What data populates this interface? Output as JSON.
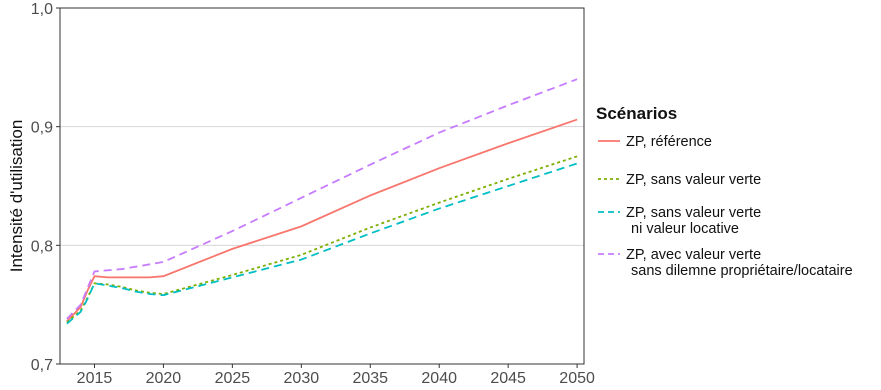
{
  "chart_data": {
    "type": "line",
    "title": "",
    "xlabel": "",
    "ylabel": "Intensité d'utilisation",
    "xlim": [
      2012.5,
      2050.5
    ],
    "ylim": [
      0.7,
      1.0
    ],
    "x_ticks": [
      2015,
      2020,
      2025,
      2030,
      2035,
      2040,
      2045,
      2050
    ],
    "x_tick_labels": [
      "2015",
      "2020",
      "2025",
      "2030",
      "2035",
      "2040",
      "2045",
      "2050"
    ],
    "y_ticks": [
      0.7,
      0.8,
      0.9,
      1.0
    ],
    "y_tick_labels": [
      "0,7",
      "0,8",
      "0,9",
      "1,0"
    ],
    "grid": true,
    "legend": {
      "title": "Scénarios",
      "placement": "right"
    },
    "series": [
      {
        "name": "ZP, référence",
        "legend_lines": [
          "ZP, référence"
        ],
        "color": "#f8766d",
        "dash": "solid",
        "x": [
          2013,
          2014,
          2014.5,
          2015,
          2016,
          2017,
          2018,
          2019,
          2020,
          2025,
          2030,
          2035,
          2040,
          2045,
          2050
        ],
        "y": [
          0.736,
          0.748,
          0.762,
          0.774,
          0.773,
          0.773,
          0.773,
          0.773,
          0.774,
          0.797,
          0.816,
          0.842,
          0.865,
          0.886,
          0.906
        ]
      },
      {
        "name": "ZP, sans valeur verte",
        "legend_lines": [
          "ZP, sans valeur verte"
        ],
        "color": "#7cae00",
        "dash": "dotted",
        "x": [
          2013,
          2014,
          2014.5,
          2015,
          2016,
          2017,
          2018,
          2019,
          2020,
          2025,
          2030,
          2035,
          2040,
          2045,
          2050
        ],
        "y": [
          0.735,
          0.745,
          0.756,
          0.768,
          0.767,
          0.765,
          0.762,
          0.76,
          0.759,
          0.775,
          0.792,
          0.815,
          0.836,
          0.856,
          0.875
        ]
      },
      {
        "name": "ZP, sans valeur verte ni valeur locative",
        "legend_lines": [
          "ZP, sans valeur verte",
          "ni valeur locative"
        ],
        "color": "#00bfc4",
        "dash": "dashed",
        "x": [
          2013,
          2014,
          2014.5,
          2015,
          2016,
          2017,
          2018,
          2019,
          2020,
          2025,
          2030,
          2035,
          2040,
          2045,
          2050
        ],
        "y": [
          0.734,
          0.744,
          0.755,
          0.768,
          0.766,
          0.764,
          0.761,
          0.759,
          0.758,
          0.773,
          0.788,
          0.81,
          0.831,
          0.85,
          0.869
        ]
      },
      {
        "name": "ZP, avec valeur verte sans dilemne propriétaire/locataire",
        "legend_lines": [
          "ZP, avec valeur verte",
          "sans dilemne propriétaire/locataire"
        ],
        "color": "#c77cff",
        "dash": "dashed",
        "x": [
          2013,
          2014,
          2014.5,
          2015,
          2016,
          2017,
          2018,
          2019,
          2020,
          2025,
          2030,
          2035,
          2040,
          2045,
          2050
        ],
        "y": [
          0.738,
          0.75,
          0.764,
          0.778,
          0.779,
          0.78,
          0.782,
          0.784,
          0.786,
          0.812,
          0.84,
          0.868,
          0.895,
          0.918,
          0.94
        ]
      }
    ]
  }
}
